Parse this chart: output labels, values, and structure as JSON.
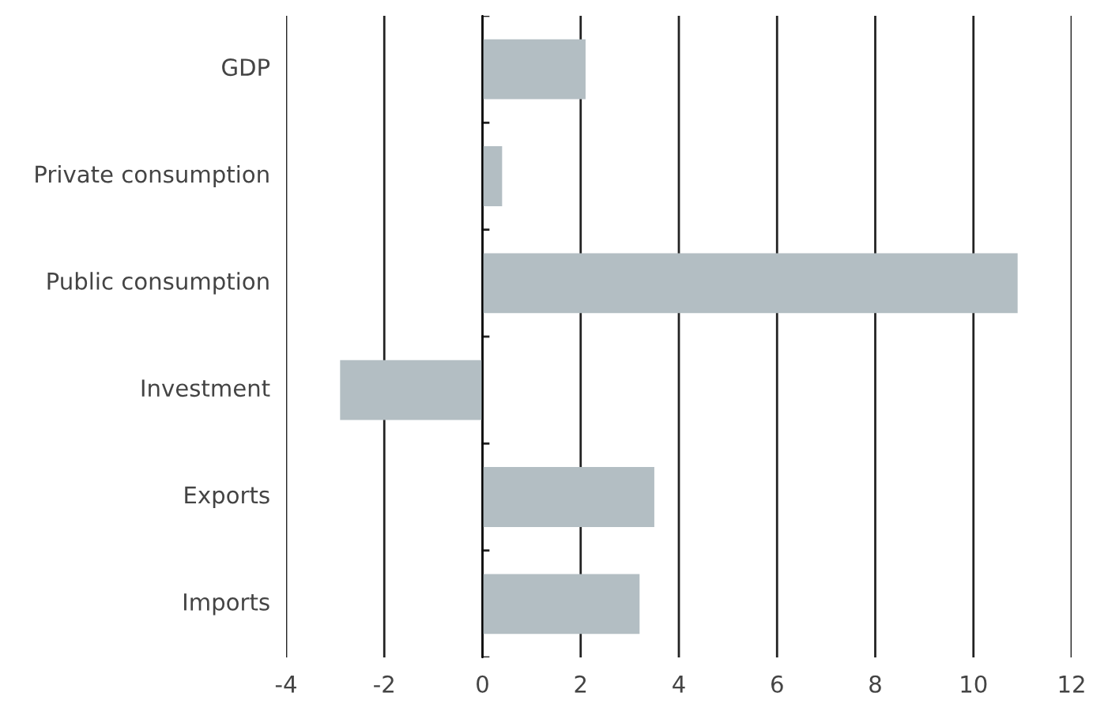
{
  "chart_data": {
    "type": "bar",
    "orientation": "horizontal",
    "categories": [
      "GDP",
      "Private consumption",
      "Public consumption",
      "Investment",
      "Exports",
      "Imports"
    ],
    "values": [
      2.1,
      0.4,
      10.9,
      -2.9,
      3.5,
      3.2
    ],
    "color": "#b3bec3",
    "xlim": [
      -4,
      12
    ],
    "xticks": [
      -4,
      -2,
      0,
      2,
      4,
      6,
      8,
      10,
      12
    ],
    "grid": "x"
  }
}
